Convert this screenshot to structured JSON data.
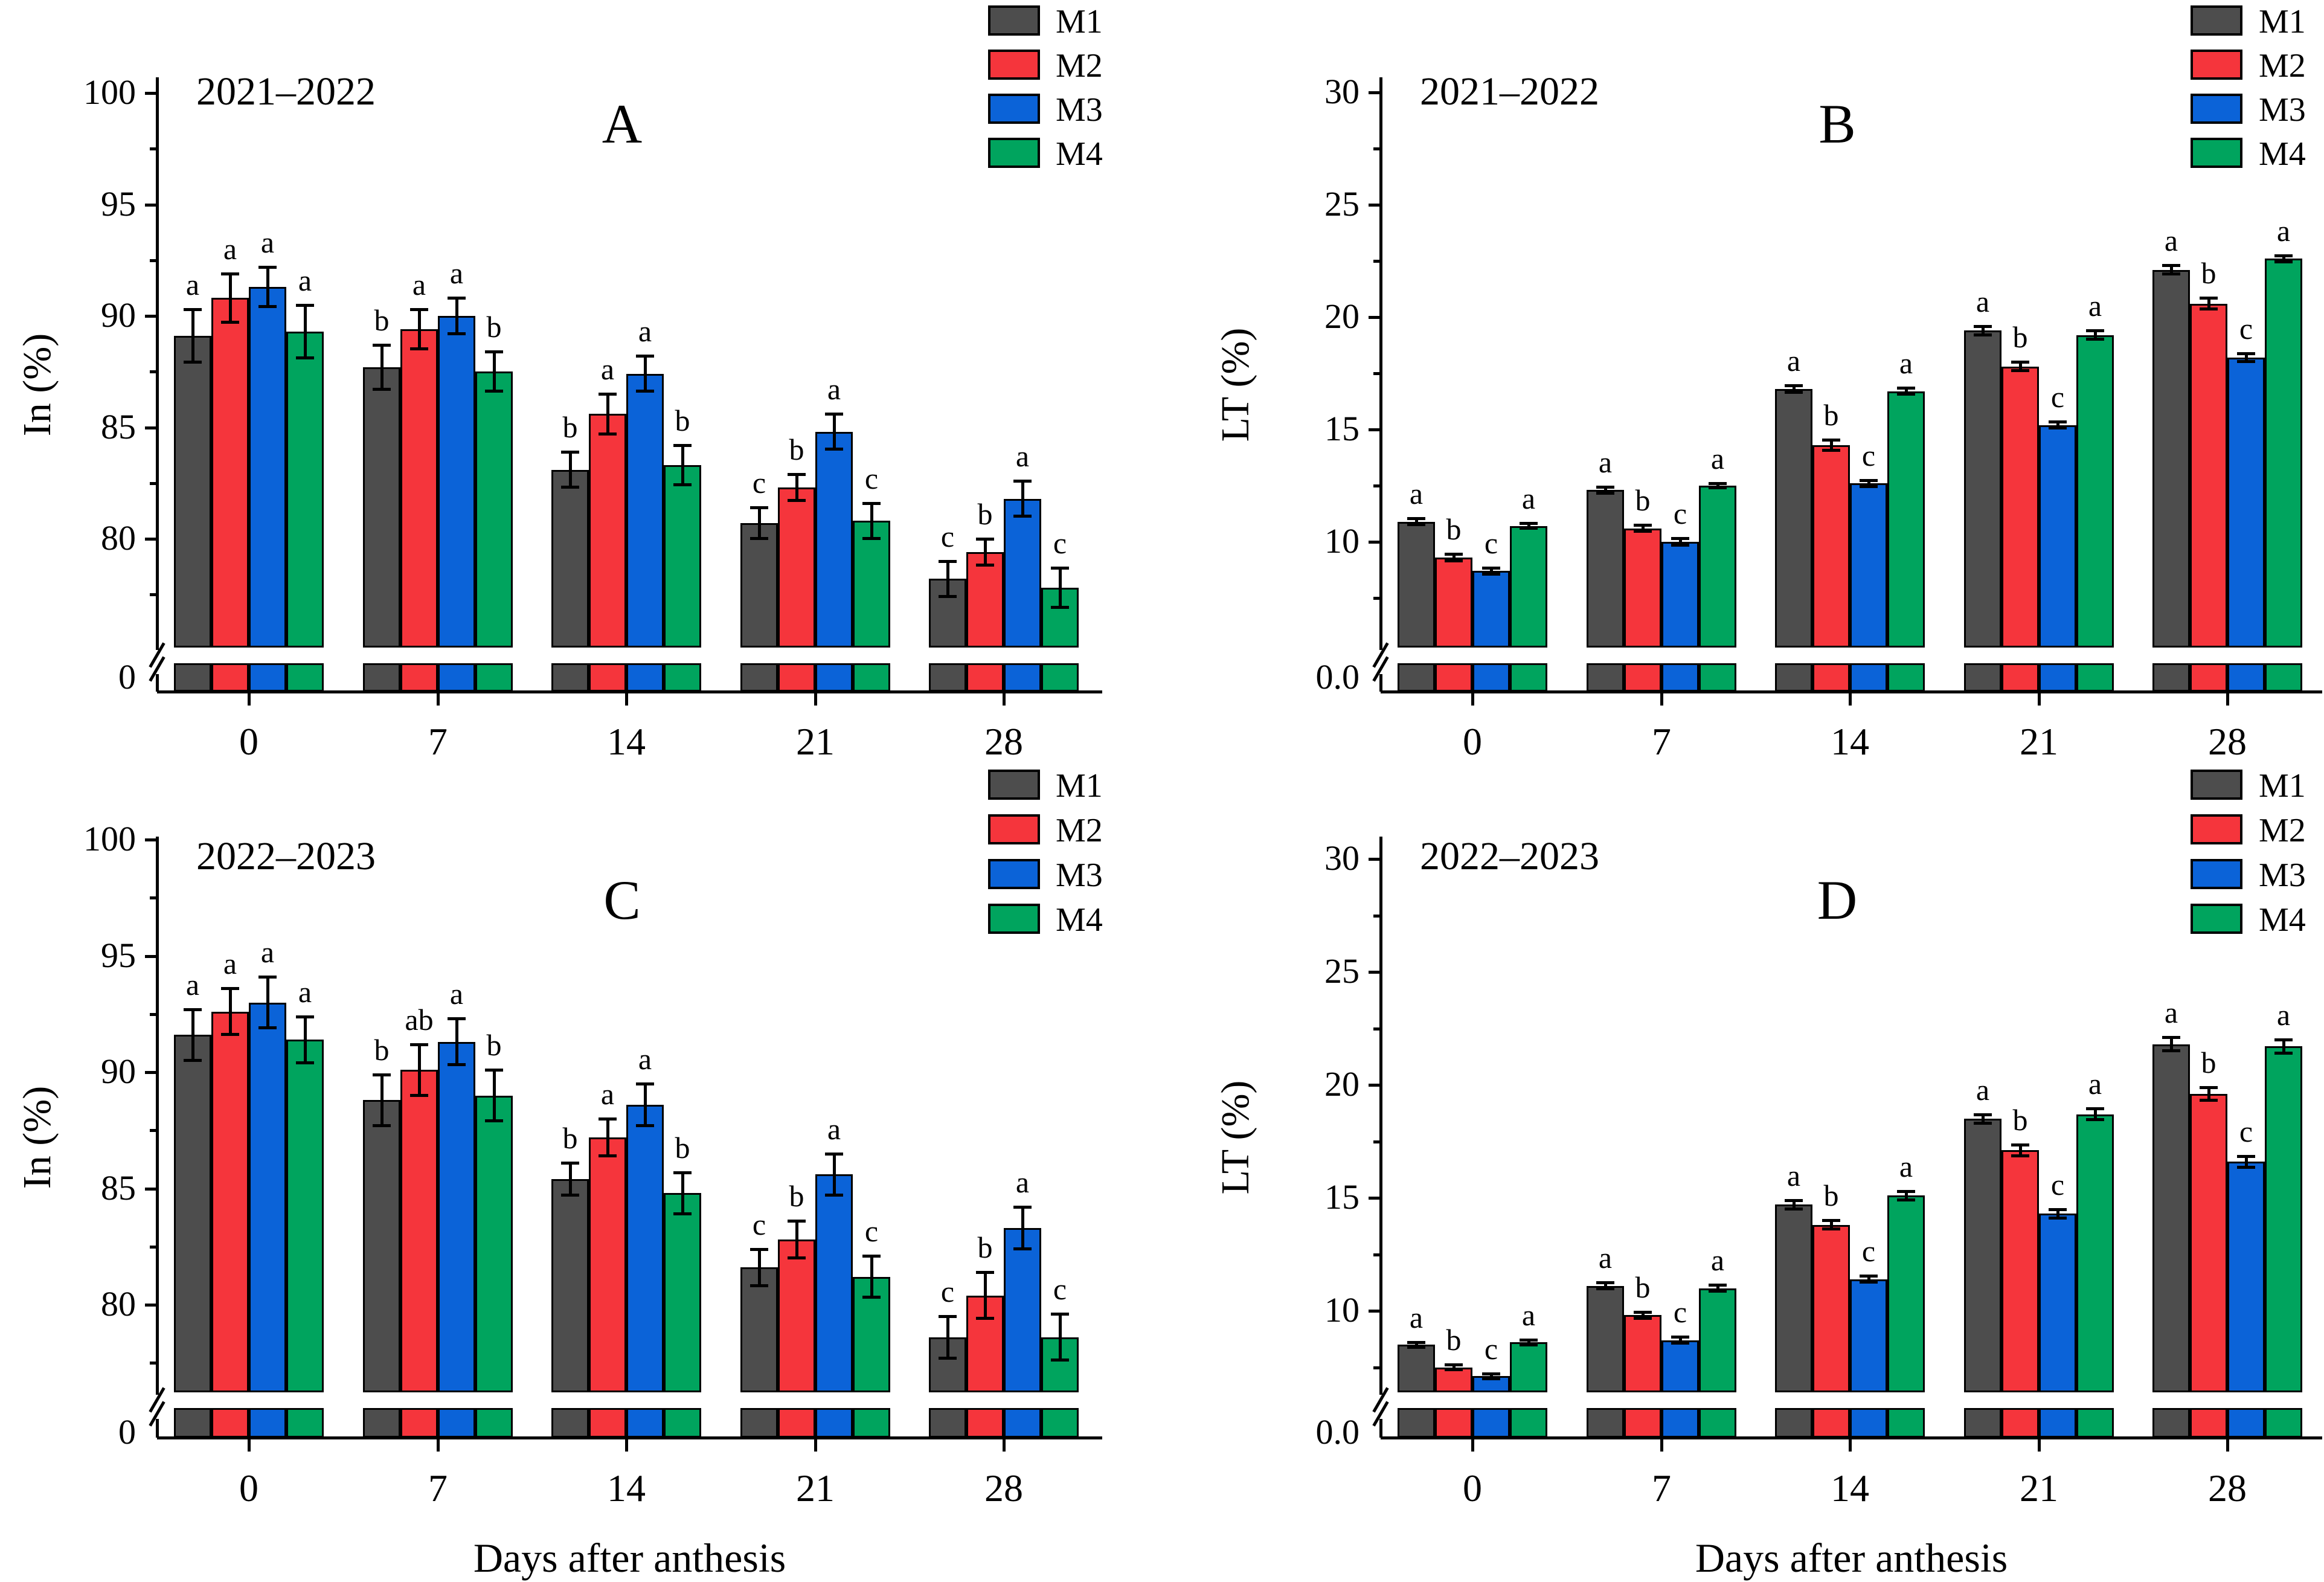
{
  "figure": {
    "xlabel": "Days after anthesis",
    "x_tick_labels": [
      "0",
      "7",
      "14",
      "21",
      "28"
    ],
    "legend": {
      "labels": [
        "M1",
        "M2",
        "M3",
        "M4"
      ],
      "colors": [
        "#4d4d4d",
        "#f5353c",
        "#0b63d8",
        "#00a45e"
      ]
    }
  },
  "chart_data": [
    {
      "type": "bar",
      "panel_letter": "A",
      "title": "2021–2022",
      "ylabel": "In (%)",
      "categories": [
        "0",
        "7",
        "14",
        "21",
        "28"
      ],
      "ylim": [
        0,
        100
      ],
      "axis_break": true,
      "ytick_labels": [
        "100",
        "95",
        "90",
        "85",
        "80"
      ],
      "yticks": [
        100,
        95,
        90,
        85,
        80
      ],
      "minor_yticks": [
        97.5,
        92.5,
        87.5,
        82.5,
        77.5
      ],
      "zero_label": "0",
      "series": [
        {
          "name": "M1",
          "color": "#4d4d4d",
          "values": [
            89.1,
            87.7,
            83.1,
            80.7,
            78.2
          ],
          "errors": [
            1.2,
            1.0,
            0.8,
            0.7,
            0.8
          ],
          "letters": [
            "a",
            "b",
            "b",
            "c",
            "c"
          ]
        },
        {
          "name": "M2",
          "color": "#f5353c",
          "values": [
            90.8,
            89.4,
            85.6,
            82.3,
            79.4
          ],
          "errors": [
            1.1,
            0.9,
            0.9,
            0.6,
            0.6
          ],
          "letters": [
            "a",
            "a",
            "a",
            "b",
            "b"
          ]
        },
        {
          "name": "M3",
          "color": "#0b63d8",
          "values": [
            91.3,
            90.0,
            87.4,
            84.8,
            81.8
          ],
          "errors": [
            0.9,
            0.8,
            0.8,
            0.8,
            0.8
          ],
          "letters": [
            "a",
            "a",
            "a",
            "a",
            "a"
          ]
        },
        {
          "name": "M4",
          "color": "#00a45e",
          "values": [
            89.3,
            87.5,
            83.3,
            80.8,
            77.8
          ],
          "errors": [
            1.2,
            0.9,
            0.9,
            0.8,
            0.9
          ],
          "letters": [
            "a",
            "b",
            "b",
            "c",
            "c"
          ]
        }
      ]
    },
    {
      "type": "bar",
      "panel_letter": "B",
      "title": "2021–2022",
      "ylabel": "LT (%)",
      "categories": [
        "0",
        "7",
        "14",
        "21",
        "28"
      ],
      "ylim": [
        0,
        30
      ],
      "axis_break": true,
      "ytick_labels": [
        "30",
        "25",
        "20",
        "15",
        "10"
      ],
      "yticks": [
        30,
        25,
        20,
        15,
        10
      ],
      "minor_yticks": [
        27.5,
        22.5,
        17.5,
        12.5,
        7.5
      ],
      "zero_label": "0.0",
      "series": [
        {
          "name": "M1",
          "color": "#4d4d4d",
          "values": [
            10.9,
            12.3,
            16.8,
            19.4,
            22.1
          ],
          "errors": [
            0.15,
            0.15,
            0.15,
            0.2,
            0.2
          ],
          "letters": [
            "a",
            "a",
            "a",
            "a",
            "a"
          ]
        },
        {
          "name": "M2",
          "color": "#f5353c",
          "values": [
            9.3,
            10.6,
            14.3,
            17.8,
            20.6
          ],
          "errors": [
            0.15,
            0.15,
            0.25,
            0.2,
            0.25
          ],
          "letters": [
            "b",
            "b",
            "b",
            "b",
            "b"
          ]
        },
        {
          "name": "M3",
          "color": "#0b63d8",
          "values": [
            8.7,
            10.0,
            12.6,
            15.2,
            18.2
          ],
          "errors": [
            0.15,
            0.15,
            0.15,
            0.15,
            0.2
          ],
          "letters": [
            "c",
            "c",
            "c",
            "c",
            "c"
          ]
        },
        {
          "name": "M4",
          "color": "#00a45e",
          "values": [
            10.7,
            12.5,
            16.7,
            19.2,
            22.6
          ],
          "errors": [
            0.12,
            0.12,
            0.15,
            0.2,
            0.15
          ],
          "letters": [
            "a",
            "a",
            "a",
            "a",
            "a"
          ]
        }
      ]
    },
    {
      "type": "bar",
      "panel_letter": "C",
      "title": "2022–2023",
      "ylabel": "In (%)",
      "categories": [
        "0",
        "7",
        "14",
        "21",
        "28"
      ],
      "ylim": [
        0,
        100
      ],
      "axis_break": true,
      "ytick_labels": [
        "100",
        "95",
        "90",
        "85",
        "80"
      ],
      "yticks": [
        100,
        95,
        90,
        85,
        80
      ],
      "minor_yticks": [
        97.5,
        92.5,
        87.5,
        82.5,
        77.5
      ],
      "zero_label": "0",
      "series": [
        {
          "name": "M1",
          "color": "#4d4d4d",
          "values": [
            91.6,
            88.8,
            85.4,
            81.6,
            78.6
          ],
          "errors": [
            1.1,
            1.1,
            0.7,
            0.8,
            0.9
          ],
          "letters": [
            "a",
            "b",
            "b",
            "c",
            "c"
          ]
        },
        {
          "name": "M2",
          "color": "#f5353c",
          "values": [
            92.6,
            90.1,
            87.2,
            82.8,
            80.4
          ],
          "errors": [
            1.0,
            1.1,
            0.8,
            0.8,
            1.0
          ],
          "letters": [
            "a",
            "ab",
            "a",
            "b",
            "b"
          ]
        },
        {
          "name": "M3",
          "color": "#0b63d8",
          "values": [
            93.0,
            91.3,
            88.6,
            85.6,
            83.3
          ],
          "errors": [
            1.1,
            1.0,
            0.9,
            0.9,
            0.9
          ],
          "letters": [
            "a",
            "a",
            "a",
            "a",
            "a"
          ]
        },
        {
          "name": "M4",
          "color": "#00a45e",
          "values": [
            91.4,
            89.0,
            84.8,
            81.2,
            78.6
          ],
          "errors": [
            1.0,
            1.1,
            0.9,
            0.9,
            1.0
          ],
          "letters": [
            "a",
            "b",
            "b",
            "c",
            "c"
          ]
        }
      ]
    },
    {
      "type": "bar",
      "panel_letter": "D",
      "title": "2022–2023",
      "ylabel": "LT (%)",
      "categories": [
        "0",
        "7",
        "14",
        "21",
        "28"
      ],
      "ylim": [
        0,
        30
      ],
      "axis_break": true,
      "ytick_labels": [
        "30",
        "25",
        "20",
        "15",
        "10"
      ],
      "yticks": [
        30,
        25,
        20,
        15,
        10
      ],
      "minor_yticks": [
        27.5,
        22.5,
        17.5,
        12.5,
        7.5
      ],
      "zero_label": "0.0",
      "series": [
        {
          "name": "M1",
          "color": "#4d4d4d",
          "values": [
            8.5,
            11.1,
            14.7,
            18.5,
            21.8
          ],
          "errors": [
            0.12,
            0.15,
            0.2,
            0.2,
            0.3
          ],
          "letters": [
            "a",
            "a",
            "a",
            "a",
            "a"
          ]
        },
        {
          "name": "M2",
          "color": "#f5353c",
          "values": [
            7.5,
            9.8,
            13.8,
            17.1,
            19.6
          ],
          "errors": [
            0.12,
            0.15,
            0.2,
            0.25,
            0.3
          ],
          "letters": [
            "b",
            "b",
            "b",
            "b",
            "b"
          ]
        },
        {
          "name": "M3",
          "color": "#0b63d8",
          "values": [
            7.1,
            8.7,
            11.4,
            14.3,
            16.6
          ],
          "errors": [
            0.12,
            0.15,
            0.15,
            0.2,
            0.25
          ],
          "letters": [
            "c",
            "c",
            "c",
            "c",
            "c"
          ]
        },
        {
          "name": "M4",
          "color": "#00a45e",
          "values": [
            8.6,
            11.0,
            15.1,
            18.7,
            21.7
          ],
          "errors": [
            0.12,
            0.15,
            0.2,
            0.25,
            0.3
          ],
          "letters": [
            "a",
            "a",
            "a",
            "a",
            "a"
          ]
        }
      ]
    }
  ]
}
